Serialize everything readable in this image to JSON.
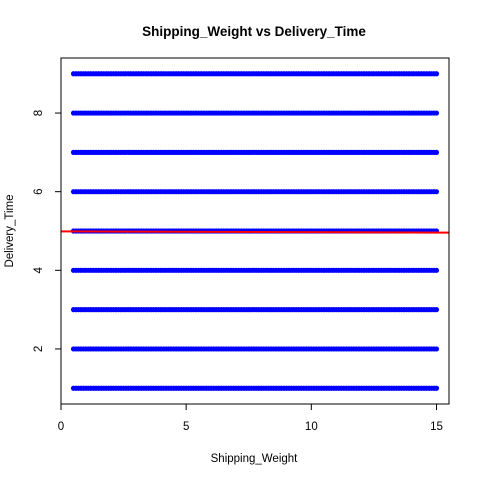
{
  "chart_data": {
    "type": "scatter",
    "title": "Shipping_Weight vs Delivery_Time",
    "xlabel": "Shipping_Weight",
    "ylabel": "Delivery_Time",
    "xlim": [
      0,
      15.5
    ],
    "ylim": [
      0.6,
      9.4
    ],
    "x_ticks": [
      0,
      5,
      10,
      15
    ],
    "y_ticks": [
      2,
      4,
      6,
      8
    ],
    "x_ticks_labels": [
      "0",
      "5",
      "10",
      "15"
    ],
    "y_ticks_labels": [
      "2",
      "4",
      "6",
      "8"
    ],
    "grid": false,
    "legend": "none",
    "series": [
      {
        "marker": "filled-circle",
        "color": "#0000ff",
        "delivery_time_levels": [
          1,
          2,
          3,
          4,
          5,
          6,
          7,
          8,
          9
        ],
        "shipping_weight_range": [
          0.5,
          15
        ]
      }
    ],
    "regression_line": {
      "color": "#ff0000",
      "x": [
        0,
        15.5
      ],
      "y": [
        4.99,
        4.96
      ]
    }
  }
}
